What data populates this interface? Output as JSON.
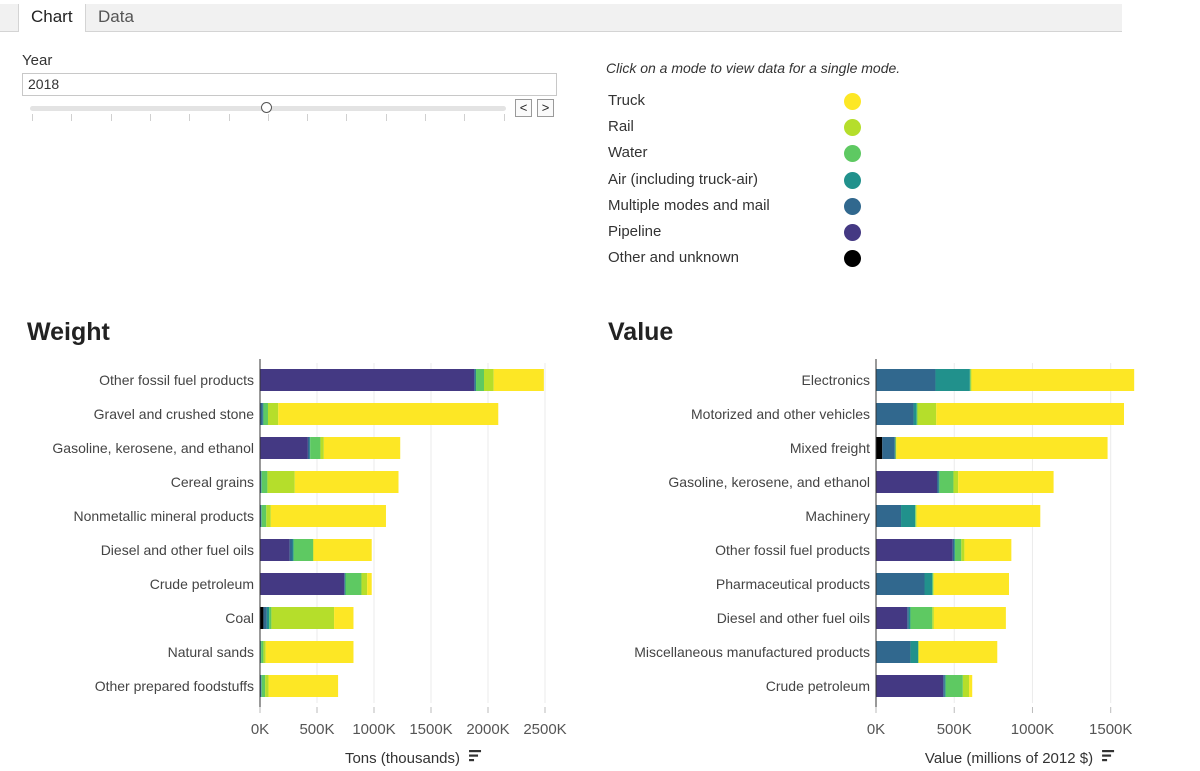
{
  "tabs": [
    {
      "label": "Chart",
      "active": true
    },
    {
      "label": "Data",
      "active": false
    }
  ],
  "year_control": {
    "label": "Year",
    "value": "2018",
    "prev_label": "<",
    "next_label": ">"
  },
  "legend": {
    "hint": "Click on a mode to view data for a single mode.",
    "items": [
      {
        "label": "Truck",
        "color": "#fde725"
      },
      {
        "label": "Rail",
        "color": "#b5de2b"
      },
      {
        "label": "Water",
        "color": "#5ec962"
      },
      {
        "label": "Air (including truck-air)",
        "color": "#21918c"
      },
      {
        "label": "Multiple modes and mail",
        "color": "#31688e"
      },
      {
        "label": "Pipeline",
        "color": "#443983"
      },
      {
        "label": "Other and unknown",
        "color": "#000000"
      }
    ]
  },
  "chart_data": [
    {
      "type": "bar",
      "orientation": "horizontal",
      "stacked": true,
      "title": "Weight",
      "xlabel": "Tons (thousands)",
      "xlim": [
        0,
        2500
      ],
      "tick_values": [
        0,
        500,
        1000,
        1500,
        2000,
        2500
      ],
      "tick_labels": [
        "0K",
        "500K",
        "1000K",
        "1500K",
        "2000K",
        "2500K"
      ],
      "categories": [
        "Other fossil fuel products",
        "Gravel and crushed stone",
        "Gasoline, kerosene, and ethanol",
        "Cereal grains",
        "Nonmetallic mineral products",
        "Diesel and other fuel oils",
        "Crude petroleum",
        "Coal",
        "Natural sands",
        "Other prepared foodstuffs"
      ],
      "series": [
        {
          "name": "Other and unknown",
          "color": "#000000",
          "values": [
            0,
            0,
            0,
            0,
            0,
            0,
            0,
            30,
            0,
            0
          ]
        },
        {
          "name": "Pipeline",
          "color": "#443983",
          "values": [
            1880,
            0,
            420,
            0,
            0,
            260,
            740,
            0,
            0,
            0
          ]
        },
        {
          "name": "Multiple modes and mail",
          "color": "#31688e",
          "values": [
            10,
            25,
            15,
            10,
            10,
            25,
            5,
            30,
            5,
            10
          ]
        },
        {
          "name": "Air (including truck-air)",
          "color": "#21918c",
          "values": [
            5,
            5,
            5,
            5,
            5,
            10,
            5,
            20,
            5,
            5
          ]
        },
        {
          "name": "Water",
          "color": "#5ec962",
          "values": [
            70,
            40,
            90,
            50,
            40,
            170,
            140,
            20,
            20,
            30
          ]
        },
        {
          "name": "Rail",
          "color": "#b5de2b",
          "values": [
            85,
            90,
            30,
            240,
            40,
            5,
            50,
            550,
            20,
            30
          ]
        },
        {
          "name": "Truck",
          "color": "#fde725",
          "values": [
            440,
            1930,
            670,
            910,
            1010,
            510,
            40,
            170,
            770,
            610
          ]
        }
      ]
    },
    {
      "type": "bar",
      "orientation": "horizontal",
      "stacked": true,
      "title": "Value",
      "xlabel": "Value (millions of 2012 $)",
      "xlim": [
        0,
        1700
      ],
      "tick_values": [
        0,
        500,
        1000,
        1500
      ],
      "tick_labels": [
        "0K",
        "500K",
        "1000K",
        "1500K"
      ],
      "categories": [
        "Electronics",
        "Motorized and other vehicles",
        "Mixed freight",
        "Gasoline, kerosene, and ethanol",
        "Machinery",
        "Other fossil fuel products",
        "Pharmaceutical products",
        "Diesel and other fuel oils",
        "Miscellaneous manufactured products",
        "Crude petroleum"
      ],
      "series": [
        {
          "name": "Other and unknown",
          "color": "#000000",
          "values": [
            0,
            0,
            40,
            0,
            0,
            0,
            0,
            0,
            0,
            0
          ]
        },
        {
          "name": "Pipeline",
          "color": "#443983",
          "values": [
            0,
            0,
            0,
            390,
            0,
            490,
            0,
            200,
            0,
            430
          ]
        },
        {
          "name": "Multiple modes and mail",
          "color": "#31688e",
          "values": [
            380,
            240,
            80,
            10,
            160,
            10,
            310,
            10,
            220,
            10
          ]
        },
        {
          "name": "Air (including truck-air)",
          "color": "#21918c",
          "values": [
            220,
            20,
            5,
            5,
            90,
            5,
            50,
            10,
            50,
            5
          ]
        },
        {
          "name": "Water",
          "color": "#5ec962",
          "values": [
            5,
            5,
            0,
            90,
            5,
            40,
            5,
            140,
            0,
            110
          ]
        },
        {
          "name": "Rail",
          "color": "#b5de2b",
          "values": [
            5,
            120,
            5,
            30,
            5,
            20,
            5,
            10,
            5,
            40
          ]
        },
        {
          "name": "Truck",
          "color": "#fde725",
          "values": [
            1040,
            1200,
            1350,
            610,
            790,
            300,
            480,
            460,
            500,
            20
          ]
        }
      ]
    }
  ]
}
